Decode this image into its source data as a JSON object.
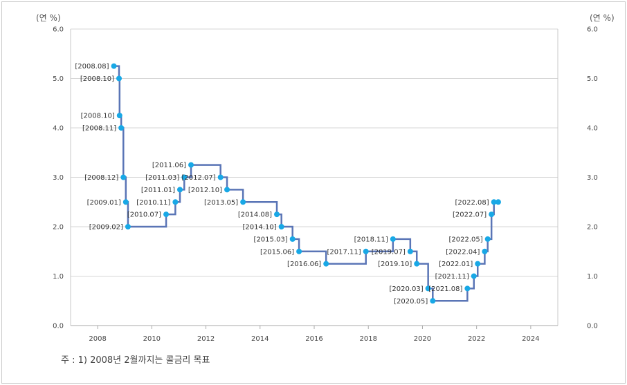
{
  "chart_data": {
    "type": "line",
    "step": true,
    "y_unit_left": "(연 %)",
    "y_unit_right": "(연 %)",
    "ylim": [
      0,
      6
    ],
    "yticks": [
      "0.0",
      "1.0",
      "2.0",
      "3.0",
      "4.0",
      "5.0",
      "6.0"
    ],
    "xlim": [
      2007,
      2025
    ],
    "xticks": [
      "2008",
      "2010",
      "2012",
      "2014",
      "2016",
      "2018",
      "2020",
      "2022",
      "2024"
    ],
    "line_color": "#5a75b6",
    "marker_color": "#18a8e6",
    "grid": true,
    "points": [
      {
        "label": "[2008.08]",
        "date": "2008-08",
        "x": 2008.6,
        "y": 5.25
      },
      {
        "label": "[2008.10]",
        "date": "2008-10",
        "x": 2008.79,
        "y": 5.0
      },
      {
        "label": "[2008.10]",
        "date": "2008-10",
        "x": 2008.81,
        "y": 4.25
      },
      {
        "label": "[2008.11]",
        "date": "2008-11",
        "x": 2008.87,
        "y": 4.0
      },
      {
        "label": "[2008.12]",
        "date": "2008-12",
        "x": 2008.95,
        "y": 3.0
      },
      {
        "label": "[2009.01]",
        "date": "2009-01",
        "x": 2009.04,
        "y": 2.5
      },
      {
        "label": "[2009.02]",
        "date": "2009-02",
        "x": 2009.12,
        "y": 2.0
      },
      {
        "label": "[2010.07]",
        "date": "2010-07",
        "x": 2010.53,
        "y": 2.25
      },
      {
        "label": "[2010.11]",
        "date": "2010-11",
        "x": 2010.87,
        "y": 2.5
      },
      {
        "label": "[2011.01]",
        "date": "2011-01",
        "x": 2011.04,
        "y": 2.75
      },
      {
        "label": "[2011.03]",
        "date": "2011-03",
        "x": 2011.2,
        "y": 3.0
      },
      {
        "label": "[2011.06]",
        "date": "2011-06",
        "x": 2011.45,
        "y": 3.25
      },
      {
        "label": "[2012.07]",
        "date": "2012-07",
        "x": 2012.54,
        "y": 3.0
      },
      {
        "label": "[2012.10]",
        "date": "2012-10",
        "x": 2012.78,
        "y": 2.75
      },
      {
        "label": "[2013.05]",
        "date": "2013-05",
        "x": 2013.37,
        "y": 2.5
      },
      {
        "label": "[2014.08]",
        "date": "2014-08",
        "x": 2014.62,
        "y": 2.25
      },
      {
        "label": "[2014.10]",
        "date": "2014-10",
        "x": 2014.79,
        "y": 2.0
      },
      {
        "label": "[2015.03]",
        "date": "2015-03",
        "x": 2015.2,
        "y": 1.75
      },
      {
        "label": "[2015.06]",
        "date": "2015-06",
        "x": 2015.44,
        "y": 1.5
      },
      {
        "label": "[2016.06]",
        "date": "2016-06",
        "x": 2016.44,
        "y": 1.25
      },
      {
        "label": "[2017.11]",
        "date": "2017-11",
        "x": 2017.91,
        "y": 1.5
      },
      {
        "label": "[2018.11]",
        "date": "2018-11",
        "x": 2018.91,
        "y": 1.75
      },
      {
        "label": "[2019.07]",
        "date": "2019-07",
        "x": 2019.55,
        "y": 1.5
      },
      {
        "label": "[2019.10]",
        "date": "2019-10",
        "x": 2019.79,
        "y": 1.25
      },
      {
        "label": "[2020.03]",
        "date": "2020-03",
        "x": 2020.21,
        "y": 0.75
      },
      {
        "label": "[2020.05]",
        "date": "2020-05",
        "x": 2020.38,
        "y": 0.5
      },
      {
        "label": "[2021.08]",
        "date": "2021-08",
        "x": 2021.66,
        "y": 0.75
      },
      {
        "label": "[2021.11]",
        "date": "2021-11",
        "x": 2021.9,
        "y": 1.0
      },
      {
        "label": "[2022.01]",
        "date": "2022-01",
        "x": 2022.04,
        "y": 1.25
      },
      {
        "label": "[2022.04]",
        "date": "2022-04",
        "x": 2022.3,
        "y": 1.5
      },
      {
        "label": "[2022.05]",
        "date": "2022-05",
        "x": 2022.41,
        "y": 1.75
      },
      {
        "label": "[2022.07]",
        "date": "2022-07",
        "x": 2022.55,
        "y": 2.25
      },
      {
        "label": "[2022.08]",
        "date": "2022-08",
        "x": 2022.64,
        "y": 2.5
      },
      {
        "label": "",
        "date": "",
        "x": 2022.8,
        "y": 2.5
      }
    ]
  },
  "footnote": "주 : 1) 2008년 2월까지는 콜금리 목표"
}
